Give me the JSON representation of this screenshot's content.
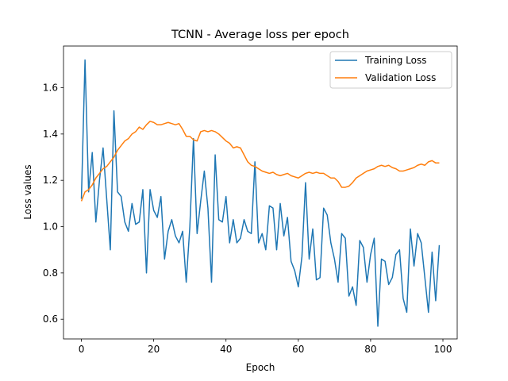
{
  "chart_data": {
    "type": "line",
    "title": "TCNN - Average loss per epoch",
    "xlabel": "Epoch",
    "ylabel": "Loss values",
    "xlim": [
      -4.95,
      103.95
    ],
    "ylim": [
      0.515,
      1.78
    ],
    "xticks": [
      0,
      20,
      40,
      60,
      80,
      100
    ],
    "yticks": [
      0.6,
      0.8,
      1.0,
      1.2,
      1.4,
      1.6
    ],
    "xtick_labels": [
      "0",
      "20",
      "40",
      "60",
      "80",
      "100"
    ],
    "ytick_labels": [
      "0.6",
      "0.8",
      "1.0",
      "1.2",
      "1.4",
      "1.6"
    ],
    "grid": false,
    "legend": "top-right",
    "series": [
      {
        "name": "Training Loss",
        "color": "#1f77b4",
        "x": [
          0,
          1,
          2,
          3,
          4,
          5,
          6,
          7,
          8,
          9,
          10,
          11,
          12,
          13,
          14,
          15,
          16,
          17,
          18,
          19,
          20,
          21,
          22,
          23,
          24,
          25,
          26,
          27,
          28,
          29,
          30,
          31,
          32,
          33,
          34,
          35,
          36,
          37,
          38,
          39,
          40,
          41,
          42,
          43,
          44,
          45,
          46,
          47,
          48,
          49,
          50,
          51,
          52,
          53,
          54,
          55,
          56,
          57,
          58,
          59,
          60,
          61,
          62,
          63,
          64,
          65,
          66,
          67,
          68,
          69,
          70,
          71,
          72,
          73,
          74,
          75,
          76,
          77,
          78,
          79,
          80,
          81,
          82,
          83,
          84,
          85,
          86,
          87,
          88,
          89,
          90,
          91,
          92,
          93,
          94,
          95,
          96,
          97,
          98,
          99
        ],
        "values": [
          1.12,
          1.72,
          1.15,
          1.32,
          1.02,
          1.2,
          1.34,
          1.12,
          0.9,
          1.5,
          1.15,
          1.13,
          1.02,
          0.98,
          1.1,
          1.01,
          1.02,
          1.16,
          0.8,
          1.16,
          1.07,
          1.04,
          1.13,
          0.86,
          0.98,
          1.03,
          0.96,
          0.93,
          0.98,
          0.76,
          1.0,
          1.38,
          0.97,
          1.11,
          1.24,
          1.08,
          0.76,
          1.31,
          1.03,
          1.02,
          1.13,
          0.93,
          1.03,
          0.93,
          0.95,
          1.03,
          0.98,
          0.97,
          1.28,
          0.93,
          0.97,
          0.9,
          1.09,
          1.08,
          0.9,
          1.1,
          0.96,
          1.04,
          0.85,
          0.81,
          0.74,
          0.87,
          1.19,
          0.86,
          0.99,
          0.77,
          0.78,
          1.08,
          1.05,
          0.93,
          0.86,
          0.76,
          0.97,
          0.95,
          0.7,
          0.74,
          0.66,
          0.94,
          0.91,
          0.76,
          0.88,
          0.95,
          0.57,
          0.86,
          0.85,
          0.75,
          0.78,
          0.88,
          0.9,
          0.69,
          0.63,
          0.99,
          0.83,
          0.97,
          0.93,
          0.78,
          0.63,
          0.89,
          0.68,
          0.92
        ]
      },
      {
        "name": "Validation Loss",
        "color": "#ff7f0e",
        "x": [
          0,
          1,
          2,
          3,
          4,
          5,
          6,
          7,
          8,
          9,
          10,
          11,
          12,
          13,
          14,
          15,
          16,
          17,
          18,
          19,
          20,
          21,
          22,
          23,
          24,
          25,
          26,
          27,
          28,
          29,
          30,
          31,
          32,
          33,
          34,
          35,
          36,
          37,
          38,
          39,
          40,
          41,
          42,
          43,
          44,
          45,
          46,
          47,
          48,
          49,
          50,
          51,
          52,
          53,
          54,
          55,
          56,
          57,
          58,
          59,
          60,
          61,
          62,
          63,
          64,
          65,
          66,
          67,
          68,
          69,
          70,
          71,
          72,
          73,
          74,
          75,
          76,
          77,
          78,
          79,
          80,
          81,
          82,
          83,
          84,
          85,
          86,
          87,
          88,
          89,
          90,
          91,
          92,
          93,
          94,
          95,
          96,
          97,
          98,
          99
        ],
        "values": [
          1.11,
          1.15,
          1.16,
          1.18,
          1.21,
          1.23,
          1.25,
          1.26,
          1.28,
          1.3,
          1.33,
          1.35,
          1.37,
          1.38,
          1.4,
          1.41,
          1.43,
          1.42,
          1.44,
          1.455,
          1.45,
          1.44,
          1.44,
          1.445,
          1.45,
          1.445,
          1.44,
          1.445,
          1.42,
          1.39,
          1.39,
          1.375,
          1.37,
          1.41,
          1.415,
          1.41,
          1.415,
          1.41,
          1.4,
          1.385,
          1.37,
          1.36,
          1.34,
          1.345,
          1.34,
          1.31,
          1.28,
          1.265,
          1.26,
          1.25,
          1.24,
          1.235,
          1.23,
          1.235,
          1.225,
          1.22,
          1.225,
          1.23,
          1.22,
          1.215,
          1.21,
          1.22,
          1.23,
          1.235,
          1.23,
          1.235,
          1.23,
          1.23,
          1.22,
          1.21,
          1.21,
          1.195,
          1.17,
          1.17,
          1.175,
          1.19,
          1.21,
          1.22,
          1.23,
          1.24,
          1.245,
          1.25,
          1.26,
          1.265,
          1.26,
          1.265,
          1.255,
          1.25,
          1.24,
          1.24,
          1.245,
          1.25,
          1.255,
          1.265,
          1.27,
          1.265,
          1.28,
          1.285,
          1.275,
          1.275
        ]
      }
    ]
  }
}
